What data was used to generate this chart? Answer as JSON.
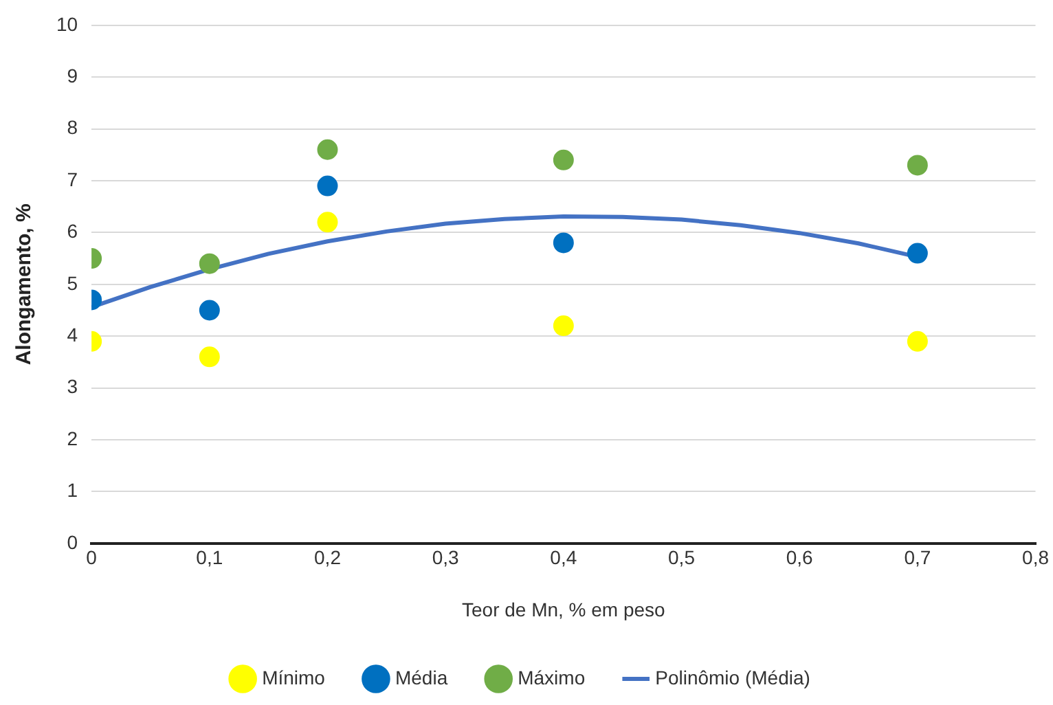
{
  "chart_data": {
    "type": "scatter",
    "xlabel": "Teor de Mn, % em peso",
    "ylabel": "Alongamento, %",
    "x": [
      0,
      0.1,
      0.2,
      0.4,
      0.7
    ],
    "series": [
      {
        "name": "Mínimo",
        "color": "#ffff00",
        "values": [
          3.9,
          3.6,
          6.2,
          4.2,
          3.9
        ]
      },
      {
        "name": "Média",
        "color": "#0070c0",
        "values": [
          4.7,
          4.5,
          6.9,
          5.8,
          5.6
        ]
      },
      {
        "name": "Máximo",
        "color": "#70ad47",
        "values": [
          5.5,
          5.4,
          7.6,
          7.4,
          7.3
        ]
      },
      {
        "name": "Polinômio (Média)",
        "type": "line",
        "color": "#4472c4",
        "line_style": "solid",
        "marker": "none",
        "x": [
          0,
          0.05,
          0.1,
          0.15,
          0.2,
          0.25,
          0.3,
          0.35,
          0.4,
          0.45,
          0.5,
          0.55,
          0.6,
          0.65,
          0.7
        ],
        "values": [
          4.56,
          4.95,
          5.29,
          5.59,
          5.83,
          6.02,
          6.17,
          6.26,
          6.31,
          6.3,
          6.25,
          6.14,
          5.99,
          5.79,
          5.53
        ]
      }
    ],
    "xlim": [
      0,
      0.8
    ],
    "xticks": [
      0,
      {
        "value": 0.1,
        "label": "0,1"
      },
      {
        "value": 0.2,
        "label": "0,2"
      },
      {
        "value": 0.3,
        "label": "0,3"
      },
      {
        "value": 0.4,
        "label": "0,4"
      },
      {
        "value": 0.5,
        "label": "0,5"
      },
      {
        "value": 0.6,
        "label": "0,6"
      },
      {
        "value": 0.7,
        "label": "0,7"
      },
      {
        "value": 0.8,
        "label": "0,8"
      }
    ],
    "ylim": [
      0,
      10
    ],
    "yticks": [
      0,
      1,
      2,
      3,
      4,
      5,
      6,
      7,
      8,
      9,
      10
    ],
    "grid": "y",
    "legend": "bottom",
    "marker": "circle"
  }
}
